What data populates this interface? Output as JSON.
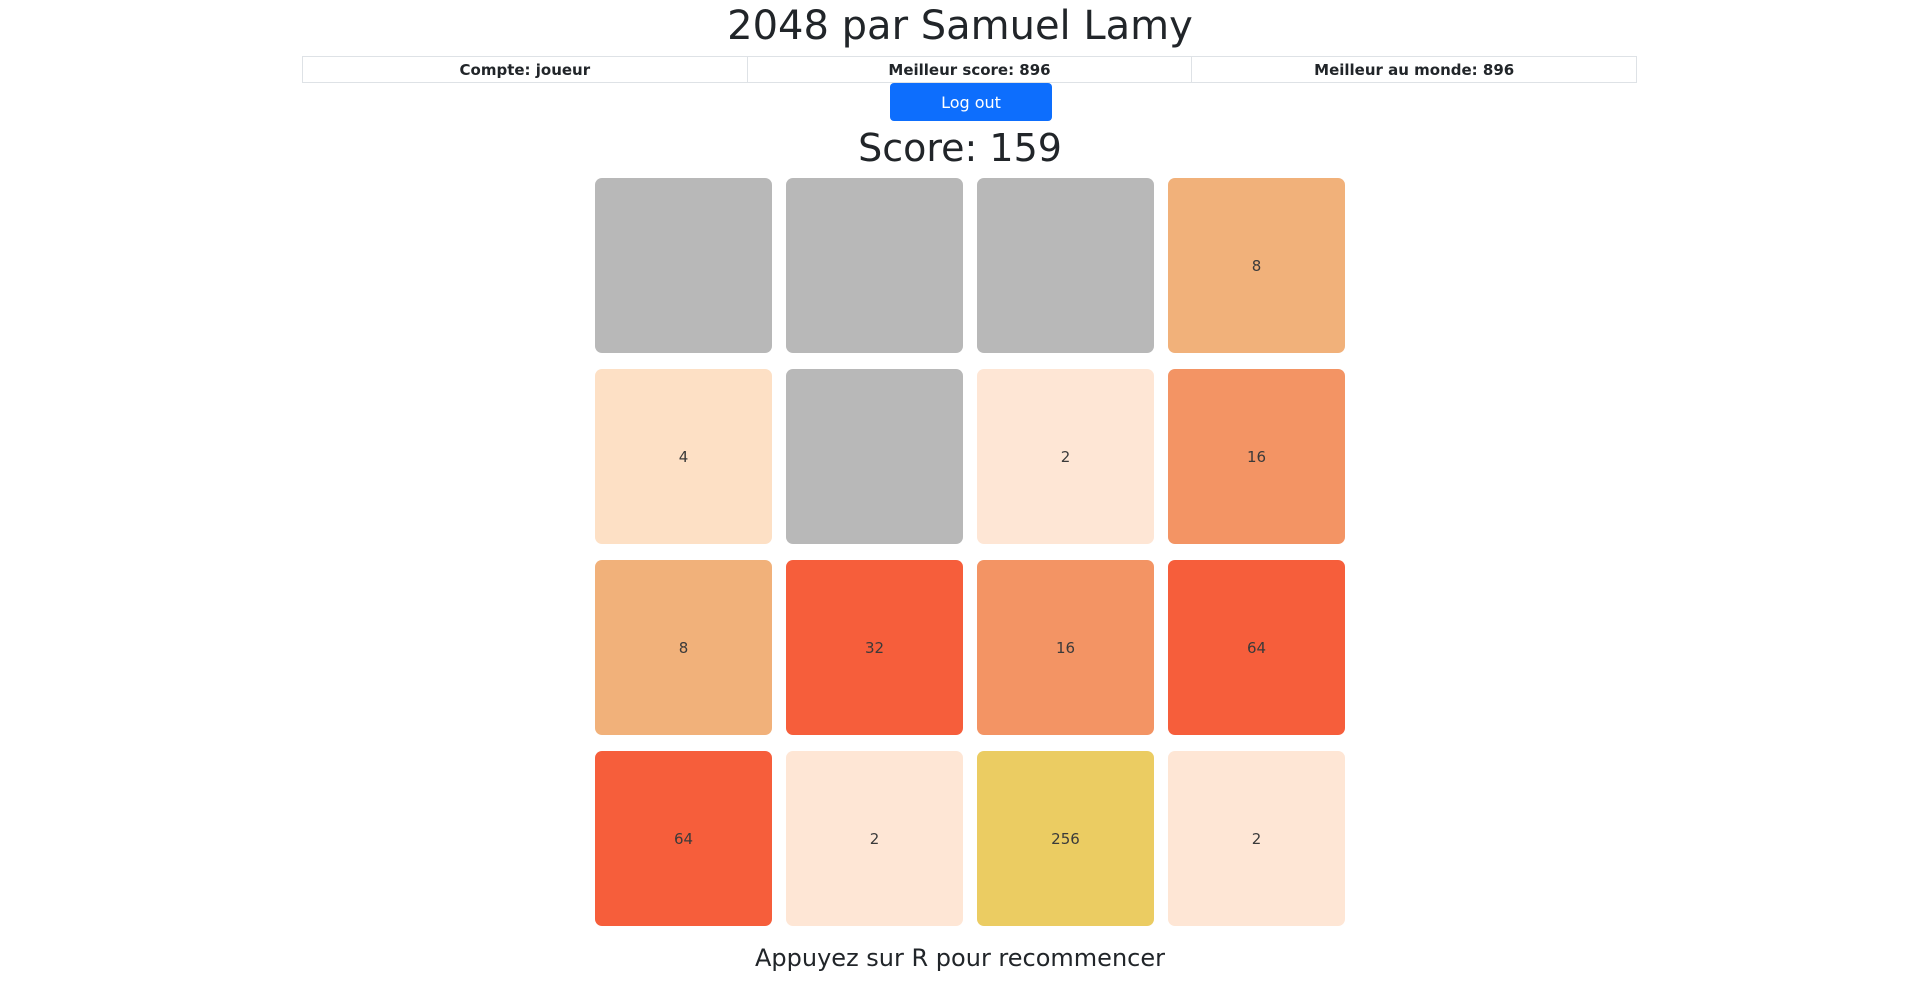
{
  "title": "2048 par Samuel Lamy",
  "stats": {
    "account": "Compte: joueur",
    "best_score": "Meilleur score: 896",
    "world_best": "Meilleur au monde: 896"
  },
  "logout_label": "Log out",
  "score_text": "Score: 159",
  "board": {
    "rows": [
      [
        null,
        null,
        null,
        8
      ],
      [
        4,
        null,
        2,
        16
      ],
      [
        8,
        32,
        16,
        64
      ],
      [
        64,
        2,
        256,
        2
      ]
    ]
  },
  "tile_colors": {
    "empty": "#b8b8b8",
    "2": "#fee6d5",
    "4": "#fde0c5",
    "8": "#f1b17a",
    "16": "#f39464",
    "32": "#f65e3b",
    "64": "#f65e3b",
    "256": "#ebcc62"
  },
  "hint": "Appuyez sur R pour recommencer"
}
